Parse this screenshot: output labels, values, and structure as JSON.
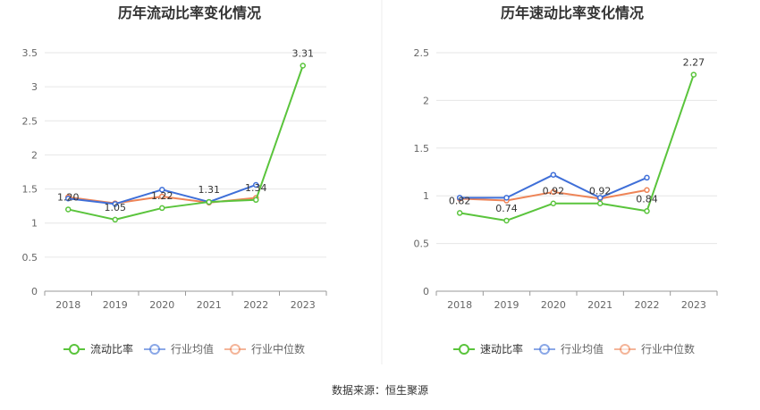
{
  "charts": [
    {
      "title": "历年流动比率变化情况",
      "legend": [
        "流动比率",
        "行业均值",
        "行业中位数"
      ],
      "y_ticks": [
        "0",
        "0.5",
        "1",
        "1.5",
        "2",
        "2.5",
        "3",
        "3.5"
      ],
      "chart_data": {
        "type": "line",
        "x": [
          "2018",
          "2019",
          "2020",
          "2021",
          "2022",
          "2023"
        ],
        "ylim": [
          0,
          3.5
        ],
        "series": [
          {
            "name": "流动比率",
            "color": "#5ac43c",
            "values": [
              1.2,
              1.05,
              1.22,
              1.31,
              1.34,
              3.31
            ],
            "labels": [
              "1.20",
              "1.05",
              "1.22",
              "1.31",
              "1.34",
              "3.31"
            ]
          },
          {
            "name": "行业均值",
            "color": "#3f6fd8",
            "values": [
              1.36,
              1.28,
              1.49,
              1.31,
              1.56,
              null
            ]
          },
          {
            "name": "行业中位数",
            "color": "#ee8457",
            "values": [
              1.38,
              1.29,
              1.39,
              1.3,
              1.37,
              null
            ]
          }
        ]
      }
    },
    {
      "title": "历年速动比率变化情况",
      "legend": [
        "速动比率",
        "行业均值",
        "行业中位数"
      ],
      "y_ticks": [
        "0",
        "0.5",
        "1",
        "1.5",
        "2",
        "2.5"
      ],
      "chart_data": {
        "type": "line",
        "x": [
          "2018",
          "2019",
          "2020",
          "2021",
          "2022",
          "2023"
        ],
        "ylim": [
          0,
          2.5
        ],
        "series": [
          {
            "name": "速动比率",
            "color": "#5ac43c",
            "values": [
              0.82,
              0.74,
              0.92,
              0.92,
              0.84,
              2.27
            ],
            "labels": [
              "0.82",
              "0.74",
              "0.92",
              "0.92",
              "0.84",
              "2.27"
            ]
          },
          {
            "name": "行业均值",
            "color": "#3f6fd8",
            "values": [
              0.98,
              0.98,
              1.22,
              0.98,
              1.19,
              null
            ]
          },
          {
            "name": "行业中位数",
            "color": "#ee8457",
            "values": [
              0.97,
              0.95,
              1.04,
              0.97,
              1.06,
              null
            ]
          }
        ]
      }
    }
  ],
  "footer": "数据来源：恒生聚源"
}
